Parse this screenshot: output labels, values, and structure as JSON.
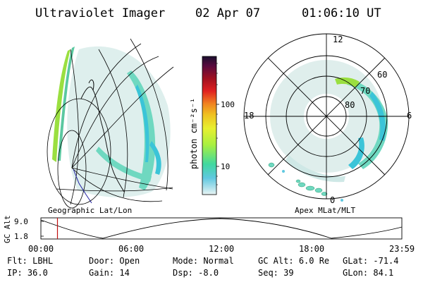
{
  "header": {
    "title": "Ultraviolet Imager",
    "date": "02 Apr 07",
    "time": "01:06:10 UT"
  },
  "colorbar": {
    "label": "photon cm⁻²s⁻¹",
    "ticks": [
      "100",
      "10"
    ],
    "colors": [
      "#1a0f2e",
      "#5a0a3e",
      "#a01020",
      "#e02020",
      "#f08020",
      "#f0c020",
      "#e8f030",
      "#a8f040",
      "#40d8a0",
      "#60c8e0",
      "#e8f4f4"
    ]
  },
  "left_panel": {
    "label": "Geographic Lat/Lon"
  },
  "right_panel": {
    "label": "Apex MLat/MLT",
    "mlt_labels": {
      "top": "12",
      "left": "18",
      "right": "6",
      "bottom": "0"
    },
    "lat_labels": [
      "60",
      "70",
      "80"
    ]
  },
  "timeline": {
    "axis_label": "GC Alt",
    "y_ticks": [
      "9.0",
      "1.8"
    ],
    "x_ticks": [
      "00:00",
      "06:00",
      "12:00",
      "18:00",
      "23:59"
    ],
    "current_time_fraction": 0.0459
  },
  "info": {
    "filter_label": "Flt:",
    "filter_value": "LBHL",
    "door_label": "Door:",
    "door_value": "Open",
    "mode_label": "Mode:",
    "mode_value": "Normal",
    "gcalt_label": "GC Alt:",
    "gcalt_value": "6.0 Re",
    "glat_label": "GLat:",
    "glat_value": "-71.4",
    "ip_label": "IP:",
    "ip_value": "36.0",
    "gain_label": "Gain:",
    "gain_value": "14",
    "dsp_label": "Dsp:",
    "dsp_value": "-8.0",
    "seq_label": "Seq:",
    "seq_value": "39",
    "glon_label": "GLon:",
    "glon_value": "84.1"
  }
}
